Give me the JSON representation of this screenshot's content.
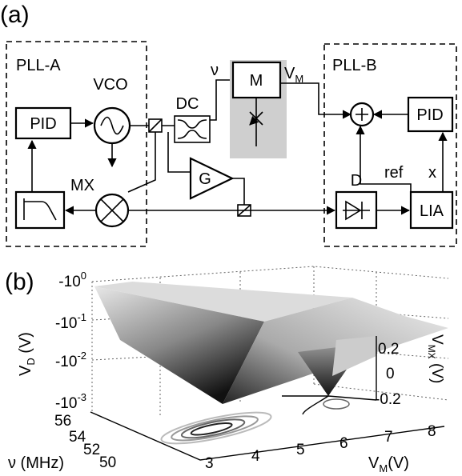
{
  "panel_a": {
    "label": "(a)",
    "pll_a": "PLL-A",
    "pll_b": "PLL-B",
    "pid_a": "PID",
    "vco": "VCO",
    "dc": "DC",
    "nu": "ν",
    "m": "M",
    "vm": {
      "main": "V",
      "sub": "M"
    },
    "mx": "MX",
    "g": "G",
    "d": "D",
    "ref": "ref",
    "x": "x",
    "lia": "LIA",
    "pid_b": "PID"
  },
  "panel_b": {
    "label": "(b)",
    "z_label": {
      "main": "V",
      "sub": "D",
      "unit": " (V)"
    },
    "z_ticks": [
      {
        "base": "-10",
        "exp": "0"
      },
      {
        "base": "-10",
        "exp": "-1"
      },
      {
        "base": "-10",
        "exp": "-2"
      },
      {
        "base": "-10",
        "exp": "-3"
      }
    ],
    "y_label": "ν (MHz)",
    "y_ticks": [
      "56",
      "54",
      "52",
      "50"
    ],
    "x_label": {
      "main": "V",
      "sub": "M",
      "unit": "(V)"
    },
    "x_ticks": [
      "3",
      "4",
      "5",
      "6",
      "7",
      "8"
    ],
    "inset_ticks": [
      "0.2",
      "0",
      "-0.2"
    ],
    "inset_label": {
      "main": "V",
      "sub": "MX",
      "unit": " (V)"
    }
  }
}
